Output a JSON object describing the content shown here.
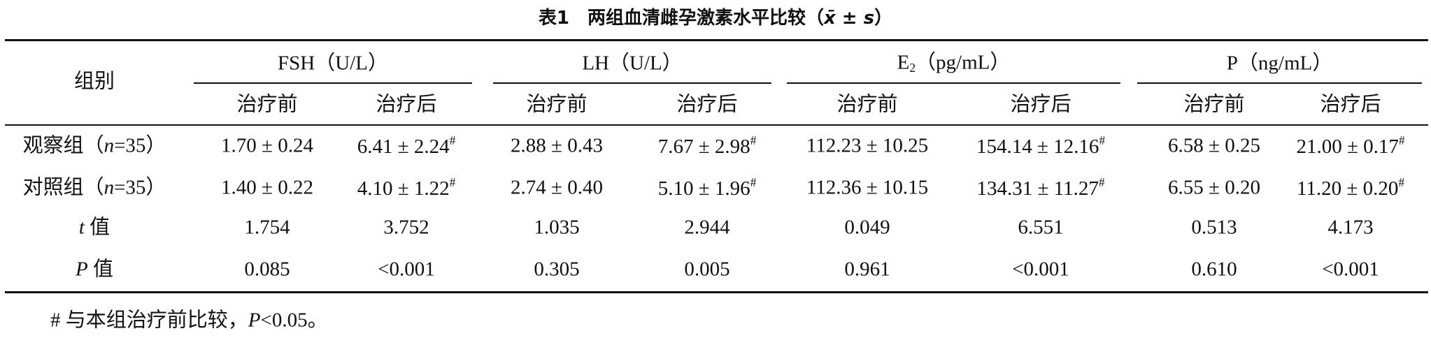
{
  "title": [
    {
      "text": "表1　两组血清雌孕激素水平比较（"
    },
    {
      "text": "x̄",
      "style": "italic"
    },
    {
      "text": " ± "
    },
    {
      "text": "s",
      "style": "italic"
    },
    {
      "text": "）"
    }
  ],
  "table": {
    "row_header": [
      {
        "text": "组别"
      }
    ],
    "groups": [
      [
        {
          "text": "FSH（U/L）"
        }
      ],
      [
        {
          "text": "LH（U/L）"
        }
      ],
      [
        {
          "text": "E"
        },
        {
          "text": "2",
          "style": "sub"
        },
        {
          "text": "（pg/mL）"
        }
      ],
      [
        {
          "text": "P（ng/mL）"
        }
      ]
    ],
    "subheaders": [
      [
        {
          "text": "治疗前"
        }
      ],
      [
        {
          "text": "治疗后"
        }
      ],
      [
        {
          "text": "治疗前"
        }
      ],
      [
        {
          "text": "治疗后"
        }
      ],
      [
        {
          "text": "治疗前"
        }
      ],
      [
        {
          "text": "治疗后"
        }
      ],
      [
        {
          "text": "治疗前"
        }
      ],
      [
        {
          "text": "治疗后"
        }
      ]
    ],
    "rows": [
      {
        "label": [
          {
            "text": "观察组（"
          },
          {
            "text": "n",
            "style": "italic"
          },
          {
            "text": "=35）"
          }
        ],
        "cells": [
          [
            {
              "text": "1.70 ± 0.24"
            }
          ],
          [
            {
              "text": "6.41 ± 2.24"
            },
            {
              "text": "#",
              "style": "sup"
            }
          ],
          [
            {
              "text": "2.88 ± 0.43"
            }
          ],
          [
            {
              "text": "7.67 ± 2.98"
            },
            {
              "text": "#",
              "style": "sup"
            }
          ],
          [
            {
              "text": "112.23 ± 10.25"
            }
          ],
          [
            {
              "text": "154.14 ± 12.16"
            },
            {
              "text": "#",
              "style": "sup"
            }
          ],
          [
            {
              "text": "6.58 ± 0.25"
            }
          ],
          [
            {
              "text": "21.00 ± 0.17"
            },
            {
              "text": "#",
              "style": "sup"
            }
          ]
        ]
      },
      {
        "label": [
          {
            "text": "对照组（"
          },
          {
            "text": "n",
            "style": "italic"
          },
          {
            "text": "=35）"
          }
        ],
        "cells": [
          [
            {
              "text": "1.40 ± 0.22"
            }
          ],
          [
            {
              "text": "4.10 ± 1.22"
            },
            {
              "text": "#",
              "style": "sup"
            }
          ],
          [
            {
              "text": "2.74 ± 0.40"
            }
          ],
          [
            {
              "text": "5.10 ± 1.96"
            },
            {
              "text": "#",
              "style": "sup"
            }
          ],
          [
            {
              "text": "112.36 ± 10.15"
            }
          ],
          [
            {
              "text": "134.31 ± 11.27"
            },
            {
              "text": "#",
              "style": "sup"
            }
          ],
          [
            {
              "text": "6.55 ± 0.20"
            }
          ],
          [
            {
              "text": "11.20 ± 0.20"
            },
            {
              "text": "#",
              "style": "sup"
            }
          ]
        ]
      },
      {
        "label": [
          {
            "text": "t",
            "style": "italic"
          },
          {
            "text": " 值"
          }
        ],
        "cells": [
          [
            {
              "text": "1.754"
            }
          ],
          [
            {
              "text": "3.752"
            }
          ],
          [
            {
              "text": "1.035"
            }
          ],
          [
            {
              "text": "2.944"
            }
          ],
          [
            {
              "text": "0.049"
            }
          ],
          [
            {
              "text": "6.551"
            }
          ],
          [
            {
              "text": "0.513"
            }
          ],
          [
            {
              "text": "4.173"
            }
          ]
        ]
      },
      {
        "label": [
          {
            "text": "P",
            "style": "italic"
          },
          {
            "text": " 值"
          }
        ],
        "cells": [
          [
            {
              "text": "0.085"
            }
          ],
          [
            {
              "text": "<0.001"
            }
          ],
          [
            {
              "text": "0.305"
            }
          ],
          [
            {
              "text": "0.005"
            }
          ],
          [
            {
              "text": "0.961"
            }
          ],
          [
            {
              "text": "<0.001"
            }
          ],
          [
            {
              "text": "0.610"
            }
          ],
          [
            {
              "text": "<0.001"
            }
          ]
        ]
      }
    ]
  },
  "footnote": [
    {
      "text": "# 与本组治疗前比较，"
    },
    {
      "text": "P",
      "style": "italic"
    },
    {
      "text": "<0.05。"
    }
  ]
}
